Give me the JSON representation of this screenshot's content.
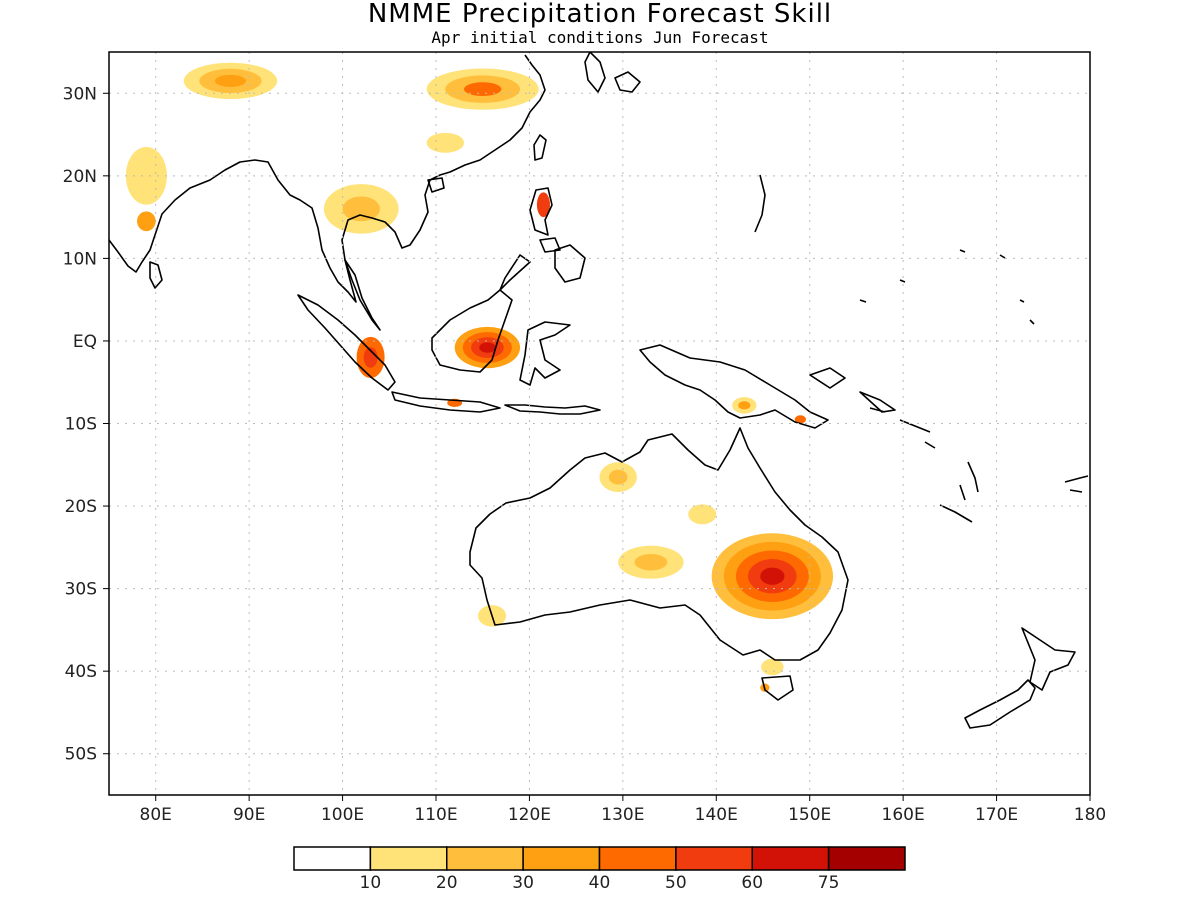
{
  "title": "NMME Precipitation Forecast Skill",
  "subtitle": "Apr initial conditions  Jun Forecast",
  "map": {
    "lon_range": [
      75,
      180
    ],
    "lat_range": [
      -55,
      35
    ],
    "lon_ticks": [
      {
        "lon": 80,
        "label": "80E"
      },
      {
        "lon": 90,
        "label": "90E"
      },
      {
        "lon": 100,
        "label": "100E"
      },
      {
        "lon": 110,
        "label": "110E"
      },
      {
        "lon": 120,
        "label": "120E"
      },
      {
        "lon": 130,
        "label": "130E"
      },
      {
        "lon": 140,
        "label": "140E"
      },
      {
        "lon": 150,
        "label": "150E"
      },
      {
        "lon": 160,
        "label": "160E"
      },
      {
        "lon": 170,
        "label": "170E"
      },
      {
        "lon": 180,
        "label": "180"
      }
    ],
    "lat_ticks": [
      {
        "lat": 30,
        "label": "30N"
      },
      {
        "lat": 20,
        "label": "20N"
      },
      {
        "lat": 10,
        "label": "10N"
      },
      {
        "lat": 0,
        "label": "EQ"
      },
      {
        "lat": -10,
        "label": "10S"
      },
      {
        "lat": -20,
        "label": "20S"
      },
      {
        "lat": -30,
        "label": "30S"
      },
      {
        "lat": -40,
        "label": "40S"
      },
      {
        "lat": -50,
        "label": "50S"
      }
    ],
    "grid": true,
    "skill_regions": [
      {
        "lon": 146,
        "lat": -28.5,
        "rx": 6.5,
        "ry": 5.2,
        "levels": [
          20,
          30,
          40,
          50,
          60
        ]
      },
      {
        "lon": 133,
        "lat": -26.8,
        "rx": 3.5,
        "ry": 2.0,
        "levels": [
          10,
          20
        ]
      },
      {
        "lon": 129.5,
        "lat": -16.5,
        "rx": 2.0,
        "ry": 1.8,
        "levels": [
          10,
          20
        ]
      },
      {
        "lon": 138.5,
        "lat": -21,
        "rx": 1.5,
        "ry": 1.2,
        "levels": [
          10
        ]
      },
      {
        "lon": 115.5,
        "lat": -0.8,
        "rx": 3.5,
        "ry": 2.5,
        "levels": [
          30,
          40,
          50,
          60
        ]
      },
      {
        "lon": 103,
        "lat": -2,
        "rx": 1.5,
        "ry": 2.5,
        "levels": [
          40,
          50
        ]
      },
      {
        "lon": 112,
        "lat": -7.5,
        "rx": 0.8,
        "ry": 0.5,
        "levels": [
          40
        ]
      },
      {
        "lon": 143,
        "lat": -7.8,
        "rx": 1.3,
        "ry": 1.0,
        "levels": [
          10,
          30
        ]
      },
      {
        "lon": 149,
        "lat": -9.5,
        "rx": 0.6,
        "ry": 0.5,
        "levels": [
          40
        ]
      },
      {
        "lon": 88,
        "lat": 31.5,
        "rx": 5,
        "ry": 2.2,
        "levels": [
          10,
          20,
          30
        ]
      },
      {
        "lon": 115,
        "lat": 30.5,
        "rx": 6,
        "ry": 2.5,
        "levels": [
          10,
          20,
          40
        ]
      },
      {
        "lon": 79,
        "lat": 20,
        "rx": 2.2,
        "ry": 3.5,
        "levels": [
          10
        ]
      },
      {
        "lon": 79,
        "lat": 14.5,
        "rx": 1.0,
        "ry": 1.2,
        "levels": [
          30
        ]
      },
      {
        "lon": 102,
        "lat": 16,
        "rx": 4,
        "ry": 3,
        "levels": [
          10,
          20
        ]
      },
      {
        "lon": 121.5,
        "lat": 16.5,
        "rx": 0.7,
        "ry": 1.5,
        "levels": [
          50
        ]
      },
      {
        "lon": 111,
        "lat": 24,
        "rx": 2,
        "ry": 1.2,
        "levels": [
          10
        ]
      },
      {
        "lon": 146,
        "lat": -39.5,
        "rx": 1.2,
        "ry": 1.0,
        "levels": [
          10
        ]
      },
      {
        "lon": 145.2,
        "lat": -42,
        "rx": 0.5,
        "ry": 0.5,
        "levels": [
          30
        ]
      },
      {
        "lon": 116,
        "lat": -33.3,
        "rx": 1.5,
        "ry": 1.3,
        "levels": [
          10
        ]
      }
    ]
  },
  "colorbar": {
    "levels": [
      10,
      20,
      30,
      40,
      50,
      60,
      75
    ],
    "labels": [
      "10",
      "20",
      "30",
      "40",
      "50",
      "60",
      "75"
    ],
    "colors": [
      "#ffffff",
      "#ffe278",
      "#ffbf3c",
      "#ffa012",
      "#ff6a00",
      "#f03c0e",
      "#d21206",
      "#a50000"
    ]
  }
}
